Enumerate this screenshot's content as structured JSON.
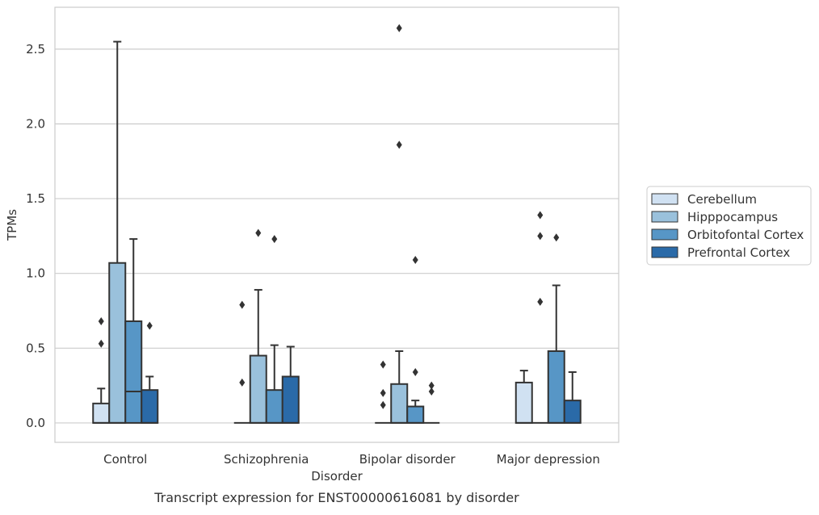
{
  "chart_data": {
    "type": "box",
    "caption": "Transcript expression for ENST00000616081 by disorder",
    "xlabel": "Disorder",
    "ylabel": "TPMs",
    "ylim": [
      -0.13,
      2.78
    ],
    "yticks": [
      0.0,
      0.5,
      1.0,
      1.5,
      2.0,
      2.5
    ],
    "ytick_labels": [
      "0.0",
      "0.5",
      "1.0",
      "1.5",
      "2.0",
      "2.5"
    ],
    "grid": "horizontal",
    "legend_position": "right",
    "categories": [
      "Control",
      "Schizophrenia",
      "Bipolar disorder",
      "Major depression"
    ],
    "series": [
      {
        "name": "Cerebellum",
        "color": "#d0e1f2",
        "boxes": [
          {
            "q1": 0.0,
            "median": 0.0,
            "q3": 0.13,
            "whisker_low": 0.0,
            "whisker_high": 0.23,
            "outliers": [
              0.53,
              0.68
            ]
          },
          {
            "q1": 0.0,
            "median": 0.0,
            "q3": 0.0,
            "whisker_low": 0.0,
            "whisker_high": 0.0,
            "outliers": [
              0.27,
              0.79
            ]
          },
          {
            "q1": 0.0,
            "median": 0.0,
            "q3": 0.0,
            "whisker_low": 0.0,
            "whisker_high": 0.0,
            "outliers": [
              0.12,
              0.2,
              0.39
            ]
          },
          {
            "q1": 0.0,
            "median": 0.0,
            "q3": 0.27,
            "whisker_low": 0.0,
            "whisker_high": 0.35,
            "outliers": []
          }
        ]
      },
      {
        "name": "Hipppocampus",
        "color": "#9ac1dc",
        "boxes": [
          {
            "q1": 0.0,
            "median": 0.0,
            "q3": 1.07,
            "whisker_low": 0.0,
            "whisker_high": 2.55,
            "outliers": []
          },
          {
            "q1": 0.0,
            "median": 0.0,
            "q3": 0.45,
            "whisker_low": 0.0,
            "whisker_high": 0.89,
            "outliers": [
              1.27
            ]
          },
          {
            "q1": 0.0,
            "median": 0.0,
            "q3": 0.26,
            "whisker_low": 0.0,
            "whisker_high": 0.48,
            "outliers": [
              1.86,
              2.64
            ]
          },
          {
            "q1": 0.0,
            "median": 0.0,
            "q3": 0.0,
            "whisker_low": 0.0,
            "whisker_high": 0.0,
            "outliers": [
              0.81,
              1.25,
              1.39
            ]
          }
        ]
      },
      {
        "name": "Orbitofontal Cortex",
        "color": "#5796c6",
        "boxes": [
          {
            "q1": 0.0,
            "median": 0.21,
            "q3": 0.68,
            "whisker_low": 0.0,
            "whisker_high": 1.23,
            "outliers": []
          },
          {
            "q1": 0.0,
            "median": 0.0,
            "q3": 0.22,
            "whisker_low": 0.0,
            "whisker_high": 0.52,
            "outliers": [
              1.23
            ]
          },
          {
            "q1": 0.0,
            "median": 0.0,
            "q3": 0.11,
            "whisker_low": 0.0,
            "whisker_high": 0.15,
            "outliers": [
              0.34,
              1.09
            ]
          },
          {
            "q1": 0.0,
            "median": 0.0,
            "q3": 0.48,
            "whisker_low": 0.0,
            "whisker_high": 0.92,
            "outliers": [
              1.24
            ]
          }
        ]
      },
      {
        "name": "Prefrontal Cortex",
        "color": "#2a6aa8",
        "boxes": [
          {
            "q1": 0.0,
            "median": 0.0,
            "q3": 0.22,
            "whisker_low": 0.0,
            "whisker_high": 0.31,
            "outliers": [
              0.65
            ]
          },
          {
            "q1": 0.0,
            "median": 0.0,
            "q3": 0.31,
            "whisker_low": 0.0,
            "whisker_high": 0.51,
            "outliers": []
          },
          {
            "q1": 0.0,
            "median": 0.0,
            "q3": 0.0,
            "whisker_low": 0.0,
            "whisker_high": 0.0,
            "outliers": [
              0.21,
              0.25
            ]
          },
          {
            "q1": 0.0,
            "median": 0.0,
            "q3": 0.15,
            "whisker_low": 0.0,
            "whisker_high": 0.34,
            "outliers": []
          }
        ]
      }
    ]
  }
}
